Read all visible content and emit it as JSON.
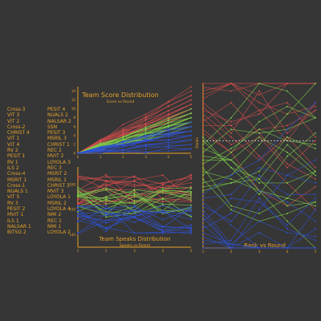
{
  "teams": [
    "Cross-3",
    "PESIT 4",
    "VIT 3",
    "NUALS 2",
    "VIT 2",
    "NALSAR 2",
    "Cross-2",
    "SSN",
    "CHRIST 4",
    "PESIT 3",
    "VIT 1",
    "MSRIL 3",
    "VIT 4",
    "CHRIST 1",
    "RV 2",
    "REC 2",
    "PESIT 1",
    "MVIT 2",
    "RV 1",
    "LOYOLA 3",
    "ILS 2",
    "REC 3",
    "Cross-4",
    "MSRIT 2",
    "MSRIT 1",
    "MSRIL 1",
    "Cross-1",
    "CHRIST 3",
    "NUALS 1",
    "MVIT 3",
    "VIT 5",
    "LOYOLA 1",
    "RV 3",
    "MSRIL 2",
    "PESIT 2",
    "LOYOLA 4",
    "MVIT 1",
    "NMI 2",
    "ILS 1",
    "REC 1",
    "NALSAR 1",
    "NMI 1",
    "BITSG 2",
    "LOYOLA 2"
  ],
  "colors": {
    "red": "#d84c4c",
    "green": "#7fd04a",
    "blue": "#2f52d6",
    "axis": "#e6a22a",
    "background": "#363636"
  },
  "chart_data": [
    {
      "type": "line",
      "title": "Team Score Distribution",
      "subtitle": "Score vs Round",
      "x": [
        0,
        1,
        2,
        3,
        4,
        5
      ],
      "xticks": [
        "0",
        "1",
        "2",
        "3",
        "4",
        "5"
      ],
      "yticks": [
        "0",
        "2",
        "4",
        "6",
        "8",
        "10",
        "12",
        "14"
      ],
      "ylim": [
        0,
        15
      ],
      "series_groups": [
        {
          "color": "red",
          "start": [
            0,
            0,
            0,
            0,
            0,
            0,
            0,
            0,
            0,
            0,
            0,
            0,
            0,
            0
          ],
          "end": [
            15,
            14,
            13,
            13,
            12,
            12,
            11,
            11,
            11,
            10,
            10,
            10,
            9,
            9
          ]
        },
        {
          "color": "green",
          "start": [
            0,
            0,
            0,
            0,
            0,
            0,
            0,
            0,
            0,
            0,
            0,
            0,
            0,
            0,
            0,
            0,
            0,
            0
          ],
          "end": [
            10,
            9,
            9,
            9,
            8,
            8,
            8,
            8,
            7,
            7,
            7,
            7,
            7,
            6,
            6,
            6,
            6,
            5
          ]
        },
        {
          "color": "blue",
          "start": [
            0,
            0,
            0,
            0,
            0,
            0,
            0,
            0,
            0,
            0,
            0,
            0,
            0,
            0,
            0,
            0,
            0,
            0
          ],
          "end": [
            7,
            6,
            6,
            6,
            5,
            5,
            5,
            5,
            4,
            4,
            4,
            3,
            3,
            3,
            2,
            2,
            1,
            1
          ]
        }
      ]
    },
    {
      "type": "line",
      "title": "Team Speaks Distribution",
      "subtitle": "Speaks vs Round",
      "x": [
        1,
        2,
        3,
        4,
        5
      ],
      "xticks": [
        "1",
        "2",
        "3",
        "4",
        "5"
      ],
      "yticks": [
        "140",
        "150",
        "160"
      ],
      "ylim": [
        135,
        167
      ],
      "bands": [
        {
          "color": "red",
          "center": 158
        },
        {
          "color": "green",
          "center": 153
        },
        {
          "color": "blue",
          "center": 146
        }
      ]
    },
    {
      "type": "line",
      "title": "Rank vs Round",
      "ylabel": "Ranks",
      "x": [
        1,
        2,
        3,
        4,
        5
      ],
      "xticks": [
        "1",
        "2",
        "3",
        "4",
        "5"
      ],
      "ylim": [
        1,
        44
      ],
      "cutoff_rank": 16
    }
  ]
}
